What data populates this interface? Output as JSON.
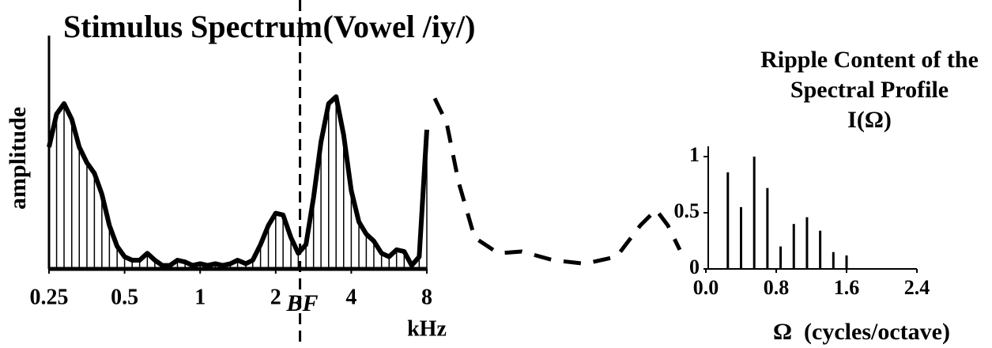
{
  "chart_data": [
    {
      "type": "spectrum",
      "title": "Stimulus Spectrum",
      "subtitle": "(Vowel /iy/)",
      "xlabel": "kHz",
      "ylabel": "amplitude",
      "xscale": "log",
      "xlim": [
        0.25,
        8
      ],
      "xticks": [
        0.25,
        0.5,
        1,
        2,
        4,
        8
      ],
      "ylim": [
        0,
        1
      ],
      "series": [
        {
          "color": "#000000",
          "style": "solid",
          "hatch": true,
          "x": [
            0.25,
            0.268,
            0.287,
            0.308,
            0.33,
            0.354,
            0.379,
            0.406,
            0.435,
            0.467,
            0.5,
            0.536,
            0.574,
            0.616,
            0.66,
            0.707,
            0.758,
            0.812,
            0.871,
            0.933,
            1,
            1.07,
            1.15,
            1.23,
            1.32,
            1.41,
            1.52,
            1.62,
            1.74,
            1.87,
            2,
            2.14,
            2.3,
            2.46,
            2.64,
            2.83,
            3.03,
            3.25,
            3.48,
            3.73,
            4,
            4.29,
            4.59,
            4.92,
            5.28,
            5.66,
            6.06,
            6.5,
            6.96,
            7.46,
            8
          ],
          "values": [
            0.7,
            0.89,
            0.95,
            0.86,
            0.7,
            0.61,
            0.55,
            0.43,
            0.25,
            0.13,
            0.07,
            0.05,
            0.05,
            0.09,
            0.05,
            0.02,
            0.02,
            0.05,
            0.04,
            0.02,
            0.03,
            0.02,
            0.03,
            0.02,
            0.03,
            0.05,
            0.03,
            0.05,
            0.14,
            0.25,
            0.32,
            0.31,
            0.18,
            0.09,
            0.14,
            0.41,
            0.73,
            0.95,
            0.99,
            0.77,
            0.45,
            0.27,
            0.2,
            0.16,
            0.09,
            0.07,
            0.11,
            0.1,
            0.02,
            0.07,
            0.8
          ]
        },
        {
          "color": "#000000",
          "style": "dashed",
          "hatch": false,
          "x": [
            8.6,
            9.59,
            10.7,
            12.4,
            15.4,
            19.1,
            25.5,
            34.1,
            45.6,
            56.7,
            65.5,
            73,
            81.4
          ],
          "values": [
            0.98,
            0.84,
            0.5,
            0.18,
            0.09,
            0.1,
            0.05,
            0.03,
            0.07,
            0.25,
            0.34,
            0.25,
            0.11
          ]
        }
      ],
      "annotations": [
        {
          "x": 2.5,
          "label": "BF"
        }
      ]
    },
    {
      "type": "stem",
      "title": [
        "Ripple Content of the",
        "Spectral Profile",
        "I(Ω)"
      ],
      "xlabel": "Ω  (cycles/octave)",
      "xlim": [
        0,
        2.4
      ],
      "xticks": [
        {
          "value": 0,
          "label": "0.0"
        },
        0.8,
        1.6,
        2.4
      ],
      "ylim": [
        0,
        1
      ],
      "yticks": [
        0,
        0.5,
        1
      ],
      "color": "#000000",
      "x": [
        0.25,
        0.4,
        0.55,
        0.7,
        0.85,
        1.0,
        1.15,
        1.3,
        1.45,
        1.6
      ],
      "values": [
        0.86,
        0.55,
        1.0,
        0.72,
        0.2,
        0.4,
        0.46,
        0.34,
        0.15,
        0.12
      ]
    }
  ]
}
